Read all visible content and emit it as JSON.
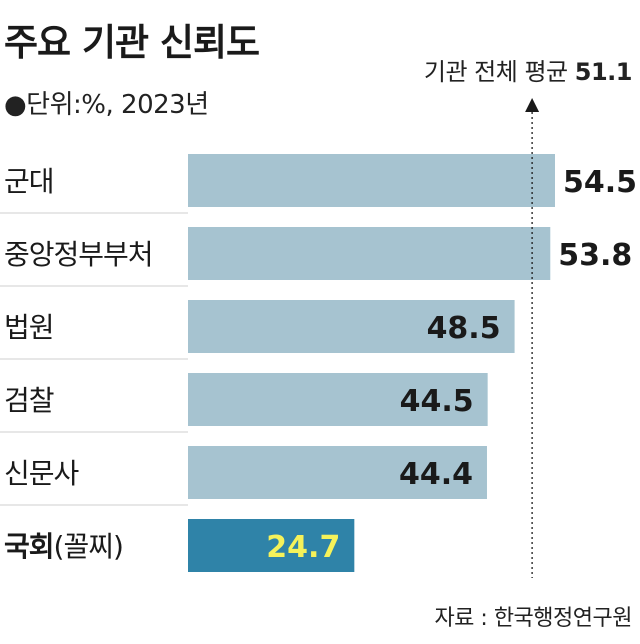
{
  "title": "주요 기관 신뢰도",
  "subtitle": "●단위:%, 2023년",
  "average": {
    "label": "기관 전체 평균",
    "value": 51.1
  },
  "source": "자료 : 한국행정연구원",
  "colors": {
    "bar": "#a6c3d0",
    "highlight_bar": "#2f83a8",
    "highlight_text": "#f5f25a",
    "separator": "#cfcfcf"
  },
  "chart_data": {
    "type": "bar",
    "orientation": "horizontal",
    "categories": [
      "군대",
      "중앙정부부처",
      "법원",
      "검찰",
      "신문사",
      "국회(꼴찌)"
    ],
    "values": [
      54.5,
      53.8,
      48.5,
      44.5,
      44.4,
      24.7
    ],
    "highlight_index": 5,
    "reference_line": {
      "label": "기관 전체 평균",
      "value": 51.1
    },
    "xlim": [
      0,
      54.5
    ],
    "grid": false
  }
}
